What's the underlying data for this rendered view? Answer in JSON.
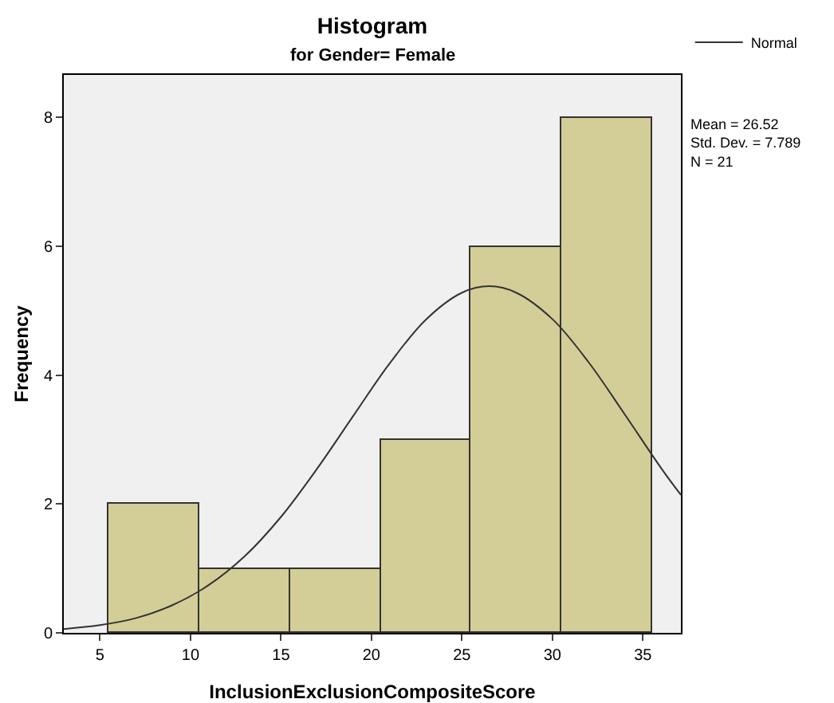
{
  "chart_data": {
    "type": "histogram",
    "title": "Histogram",
    "subtitle": "for Gender= Female",
    "xlabel": "InclusionExclusionCompositeScore",
    "ylabel": "Frequency",
    "series": [
      {
        "bins": [
          5.5,
          10.5,
          15.5,
          20.5,
          25.5,
          30.5,
          35.5
        ],
        "values": [
          2,
          1,
          1,
          3,
          6,
          8
        ],
        "color": "#d3ce97"
      },
      {
        "type": "line",
        "name": "Normal",
        "color": "#333333",
        "x": [
          3,
          5,
          7,
          9,
          11,
          13,
          15,
          17,
          19,
          21,
          23,
          25,
          26.52,
          28,
          30,
          32,
          34,
          36,
          37.1
        ],
        "values": [
          0.06,
          0.12,
          0.23,
          0.43,
          0.74,
          1.19,
          1.8,
          2.55,
          3.37,
          4.18,
          4.86,
          5.28,
          5.38,
          5.28,
          4.87,
          4.2,
          3.39,
          2.56,
          2.14
        ]
      }
    ],
    "xlim": [
      3,
      37.1
    ],
    "xticks": [
      5,
      10,
      15,
      20,
      25,
      30,
      35
    ],
    "ylim": [
      0,
      8.66
    ],
    "yticks": [
      0,
      2,
      4,
      6,
      8
    ],
    "grid": false,
    "legend": "top right",
    "marker": "none",
    "line_style": "solid",
    "annotations": [
      "Mean = 26.52",
      "Std. Dev. = 7.789",
      "N = 21"
    ]
  }
}
